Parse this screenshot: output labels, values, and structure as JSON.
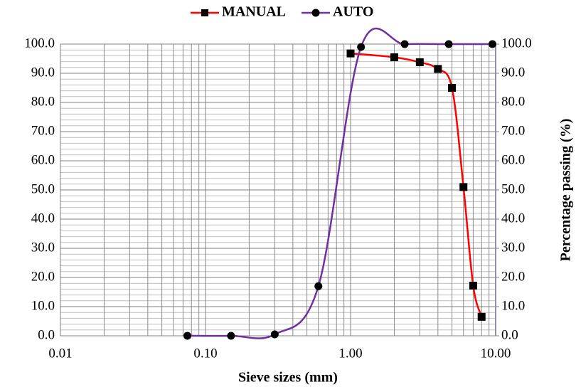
{
  "chart_data": {
    "type": "line",
    "x_label": "Sieve sizes (mm)",
    "y2_label": "Percentage passing (%)",
    "xscale": "log",
    "xlim": [
      0.01,
      10
    ],
    "xticks": [
      {
        "value": 0.01,
        "label": "0.01"
      },
      {
        "value": 0.1,
        "label": "0.10"
      },
      {
        "value": 1,
        "label": "1.00"
      },
      {
        "value": 10,
        "label": "10.00"
      }
    ],
    "ylim": [
      0,
      100
    ],
    "yticks": [
      {
        "value": 0,
        "label": "0.0"
      },
      {
        "value": 10,
        "label": "10.0"
      },
      {
        "value": 20,
        "label": "20.0"
      },
      {
        "value": 30,
        "label": "30.0"
      },
      {
        "value": 40,
        "label": "40.0"
      },
      {
        "value": 50,
        "label": "50.0"
      },
      {
        "value": 60,
        "label": "60.0"
      },
      {
        "value": 70,
        "label": "70.0"
      },
      {
        "value": 80,
        "label": "80.0"
      },
      {
        "value": 90,
        "label": "90.0"
      },
      {
        "value": 100,
        "label": "100.0"
      }
    ],
    "y2lim": [
      0,
      100
    ],
    "y2ticks": [
      {
        "value": 0,
        "label": "0.0"
      },
      {
        "value": 10,
        "label": "10.0"
      },
      {
        "value": 20,
        "label": "20.0"
      },
      {
        "value": 30,
        "label": "30.0"
      },
      {
        "value": 40,
        "label": "40.0"
      },
      {
        "value": 50,
        "label": "50.0"
      },
      {
        "value": 60,
        "label": "60.0"
      },
      {
        "value": 70,
        "label": "70.0"
      },
      {
        "value": 80,
        "label": "80.0"
      },
      {
        "value": 90,
        "label": "90.0"
      },
      {
        "value": 100,
        "label": "100.0"
      }
    ],
    "grid": true,
    "legend": "top",
    "series": [
      {
        "name": "MANUAL",
        "color": "#ff0000",
        "marker": "square",
        "x": [
          1,
          2,
          3,
          4,
          5,
          6,
          7,
          8
        ],
        "values": [
          96.8,
          95.5,
          93.8,
          91.5,
          85,
          51,
          17.2,
          6.5
        ]
      },
      {
        "name": "AUTO",
        "color": "#7030a0",
        "marker": "circle",
        "x": [
          0.075,
          0.15,
          0.3,
          0.6,
          1.18,
          2.36,
          4.75,
          9.5
        ],
        "values": [
          0,
          0,
          0.5,
          17,
          99,
          100,
          100,
          100
        ]
      }
    ]
  }
}
